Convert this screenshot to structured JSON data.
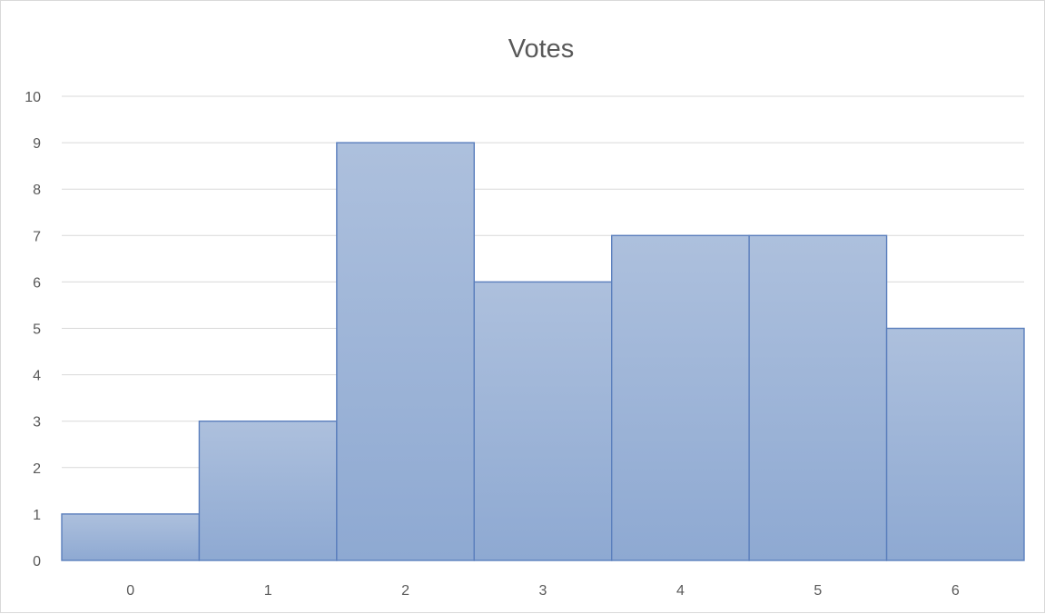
{
  "chart_data": {
    "type": "bar",
    "title": "Votes",
    "xlabel": "",
    "ylabel": "",
    "categories": [
      "0",
      "1",
      "2",
      "3",
      "4",
      "5",
      "6"
    ],
    "values": [
      1,
      3,
      9,
      6,
      7,
      7,
      5
    ],
    "ylim": [
      0,
      10
    ],
    "ytick_step": 1,
    "grid": true,
    "legend": "none",
    "bar_gap": "none",
    "colors": {
      "bar_fill_top": "#adc0dd",
      "bar_fill_bottom": "#8ea9d2",
      "bar_edge": "#5b7fbd",
      "gridline": "#d9d9d9",
      "text": "#595959"
    }
  }
}
